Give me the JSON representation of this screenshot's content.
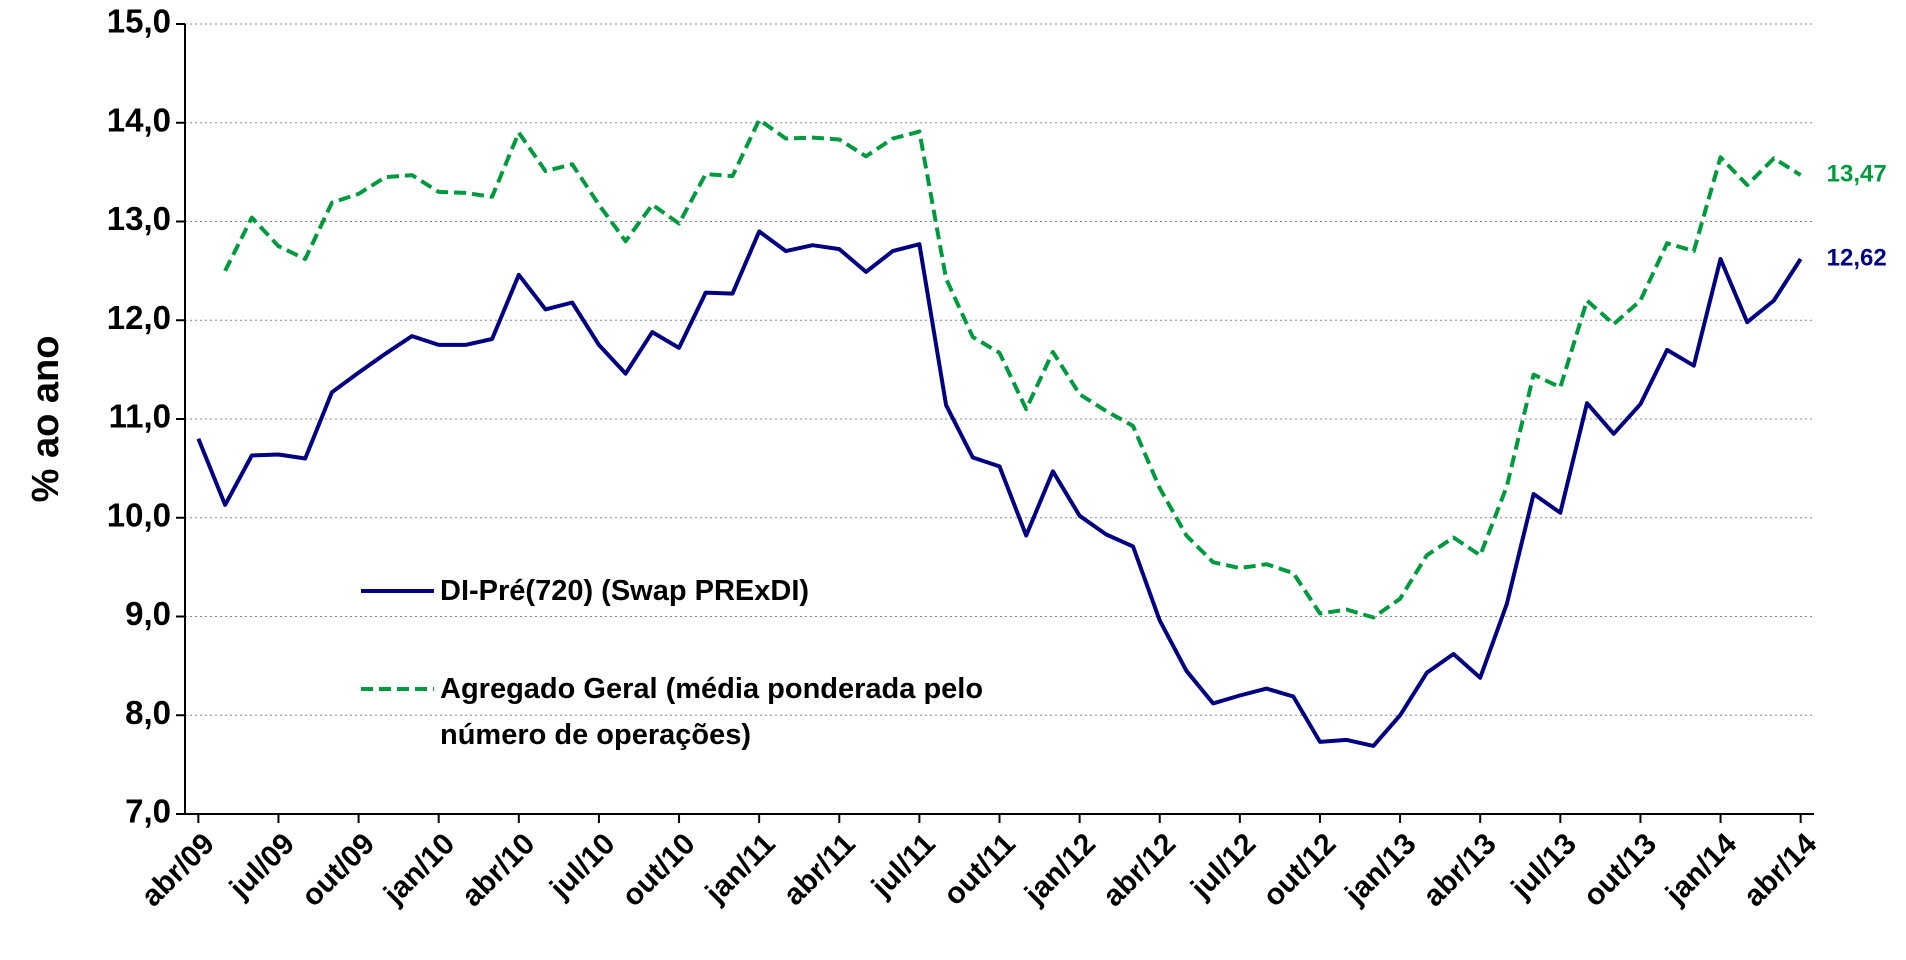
{
  "chart_data": {
    "type": "line",
    "y_label": "% ao ano",
    "categories": [
      "abr/09",
      null,
      null,
      "jul/09",
      null,
      null,
      "out/09",
      null,
      null,
      "jan/10",
      null,
      null,
      "abr/10",
      null,
      null,
      "jul/10",
      null,
      null,
      "out/10",
      null,
      null,
      "jan/11",
      null,
      null,
      "abr/11",
      null,
      null,
      "jul/11",
      null,
      null,
      "out/11",
      null,
      null,
      "jan/12",
      null,
      null,
      "abr/12",
      null,
      null,
      "jul/12",
      null,
      null,
      "out/12",
      null,
      null,
      "jan/13",
      null,
      null,
      "abr/13",
      null,
      null,
      "jul/13",
      null,
      null,
      "out/13",
      null,
      null,
      "jan/14",
      null,
      null,
      "abr/14"
    ],
    "series": [
      {
        "name": "DI-Pré(720) (Swap PRExDI)",
        "color": "#000080",
        "dash": false,
        "values": [
          10.8,
          10.13,
          10.63,
          10.64,
          10.6,
          11.27,
          11.47,
          11.66,
          11.84,
          11.75,
          11.75,
          11.81,
          12.46,
          12.11,
          12.18,
          11.75,
          11.46,
          11.88,
          11.72,
          12.28,
          12.27,
          12.9,
          12.7,
          12.76,
          12.72,
          12.49,
          12.7,
          12.77,
          11.14,
          10.61,
          10.52,
          9.82,
          10.47,
          10.02,
          9.83,
          9.71,
          8.96,
          8.45,
          8.12,
          8.2,
          8.27,
          8.19,
          7.73,
          7.75,
          7.69,
          8.0,
          8.43,
          8.62,
          8.38,
          9.13,
          10.24,
          10.05,
          11.16,
          10.85,
          11.15,
          11.7,
          11.54,
          12.62,
          11.98,
          12.2,
          12.62
        ],
        "value_labels": [
          null,
          null,
          null,
          null,
          null,
          null,
          null,
          null,
          null,
          null,
          null,
          null,
          null,
          null,
          null,
          null,
          null,
          null,
          null,
          null,
          null,
          null,
          null,
          null,
          null,
          null,
          null,
          null,
          null,
          null,
          null,
          null,
          null,
          null,
          null,
          null,
          null,
          null,
          null,
          null,
          null,
          null,
          null,
          null,
          null,
          null,
          null,
          null,
          null,
          null,
          null,
          null,
          null,
          null,
          null,
          null,
          null,
          null,
          null,
          null,
          "12,62"
        ]
      },
      {
        "name": "Agregado Geral (média ponderada pelo número de operações)",
        "color": "#009a3e",
        "dash": true,
        "values": [
          null,
          12.5,
          13.04,
          12.75,
          12.62,
          13.19,
          13.28,
          13.45,
          13.47,
          13.3,
          13.29,
          13.25,
          13.9,
          13.51,
          13.58,
          13.17,
          12.8,
          13.17,
          12.98,
          13.48,
          13.46,
          14.03,
          13.84,
          13.85,
          13.83,
          13.66,
          13.84,
          13.91,
          12.42,
          11.83,
          11.67,
          11.1,
          11.68,
          11.25,
          11.08,
          10.93,
          10.3,
          9.82,
          9.55,
          9.49,
          9.53,
          9.44,
          9.03,
          9.07,
          8.99,
          9.18,
          9.62,
          9.8,
          9.62,
          10.32,
          11.45,
          11.32,
          12.2,
          11.96,
          12.2,
          12.78,
          12.7,
          13.65,
          13.37,
          13.64,
          13.47
        ],
        "value_labels": [
          null,
          null,
          null,
          null,
          null,
          null,
          null,
          null,
          null,
          null,
          null,
          null,
          null,
          null,
          null,
          null,
          null,
          null,
          null,
          null,
          null,
          null,
          null,
          null,
          null,
          null,
          null,
          null,
          null,
          null,
          null,
          null,
          null,
          null,
          null,
          null,
          null,
          null,
          null,
          null,
          null,
          null,
          null,
          null,
          null,
          null,
          null,
          null,
          null,
          null,
          null,
          null,
          null,
          null,
          null,
          null,
          null,
          null,
          null,
          null,
          "13,47"
        ]
      }
    ],
    "ylim": [
      7,
      15
    ],
    "yticks": [
      {
        "value": 7,
        "label": "7,0"
      },
      {
        "value": 8,
        "label": "8,0"
      },
      {
        "value": 9,
        "label": "9,0"
      },
      {
        "value": 10,
        "label": "10,0"
      },
      {
        "value": 11,
        "label": "11,0"
      },
      {
        "value": 12,
        "label": "12,0"
      },
      {
        "value": 13,
        "label": "13,0"
      },
      {
        "value": 14,
        "label": "14,0"
      },
      {
        "value": 15,
        "label": "15,0"
      }
    ],
    "grid": true
  }
}
